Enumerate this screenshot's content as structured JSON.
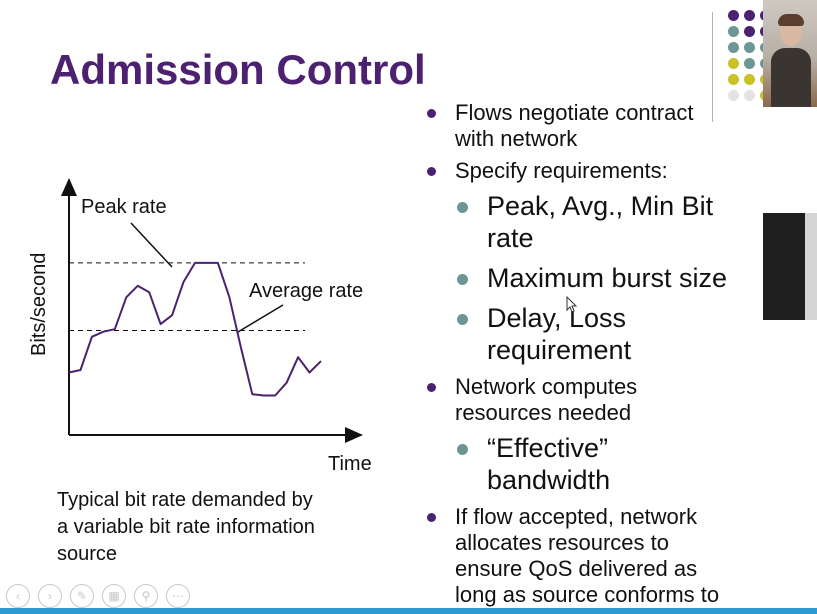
{
  "slide": {
    "title": "Admission Control",
    "bullets": [
      {
        "level": 1,
        "text": "Flows negotiate contract with network",
        "lines": [
          "Flows negotiate contract",
          "with network"
        ]
      },
      {
        "level": 1,
        "text": "Specify requirements:",
        "lines": [
          "Specify requirements:"
        ]
      },
      {
        "level": 2,
        "text": "Peak, Avg., Min Bit rate",
        "lines": [
          "Peak, Avg., Min Bit",
          "rate"
        ]
      },
      {
        "level": 2,
        "text": "Maximum burst size",
        "lines": [
          "Maximum burst size"
        ]
      },
      {
        "level": 2,
        "text": "Delay, Loss requirement",
        "lines": [
          "Delay, Loss",
          "requirement"
        ]
      },
      {
        "level": 1,
        "text": "Network computes resources needed",
        "lines": [
          "Network computes",
          "resources needed"
        ]
      },
      {
        "level": 2,
        "text": "“Effective” bandwidth",
        "lines": [
          "“Effective”",
          "bandwidth"
        ]
      },
      {
        "level": 1,
        "text": "If flow accepted, network allocates resources to ensure QoS delivered as long as source conforms to",
        "lines": [
          "If flow accepted, network",
          "allocates resources to",
          "ensure QoS delivered as",
          "long as source conforms to"
        ]
      }
    ],
    "caption_lines": [
      "Typical bit rate demanded by",
      "a variable bit rate information",
      "source"
    ]
  },
  "chart_data": {
    "type": "line",
    "xlabel": "Time",
    "ylabel": "Bits/second",
    "annotations": {
      "peak": "Peak rate",
      "average": "Average rate"
    },
    "series": [
      {
        "values": [
          0.245,
          0.255,
          0.385,
          0.405,
          0.415,
          0.54,
          0.585,
          0.56,
          0.435,
          0.47,
          0.6,
          0.675,
          0.675,
          0.675,
          0.54,
          0.345,
          0.16,
          0.155,
          0.155,
          0.205,
          0.305,
          0.245,
          0.29
        ]
      }
    ],
    "reference_lines": {
      "peak": 0.675,
      "average": 0.41
    },
    "grid": false,
    "legend": "none"
  },
  "colors": {
    "title": "#4b2170",
    "bullet_level1": "#4b2170",
    "bullet_level2": "#6e9596",
    "line": "#4b2170"
  },
  "decor": {
    "dots": [
      [
        "#4b2170",
        "#4b2170",
        "#4b2170",
        "#4b2170"
      ],
      [
        "#6e9596",
        "#4b2170",
        "#4b2170",
        "#4b2170"
      ],
      [
        "#6e9596",
        "#6e9596",
        "#6e9596",
        "#4b2170"
      ],
      [
        "#c9c126",
        "#6e9596",
        "#6e9596",
        "#6e9596"
      ],
      [
        "#c9c126",
        "#c9c126",
        "#c9c126",
        "#6e9596"
      ],
      [
        "#e3e3e3",
        "#e3e3e3",
        "#c9c126",
        "#c9c126"
      ]
    ]
  },
  "toolbar_icons": [
    "prev-icon",
    "next-icon",
    "pen-icon",
    "slides-icon",
    "zoom-icon",
    "more-icon"
  ]
}
